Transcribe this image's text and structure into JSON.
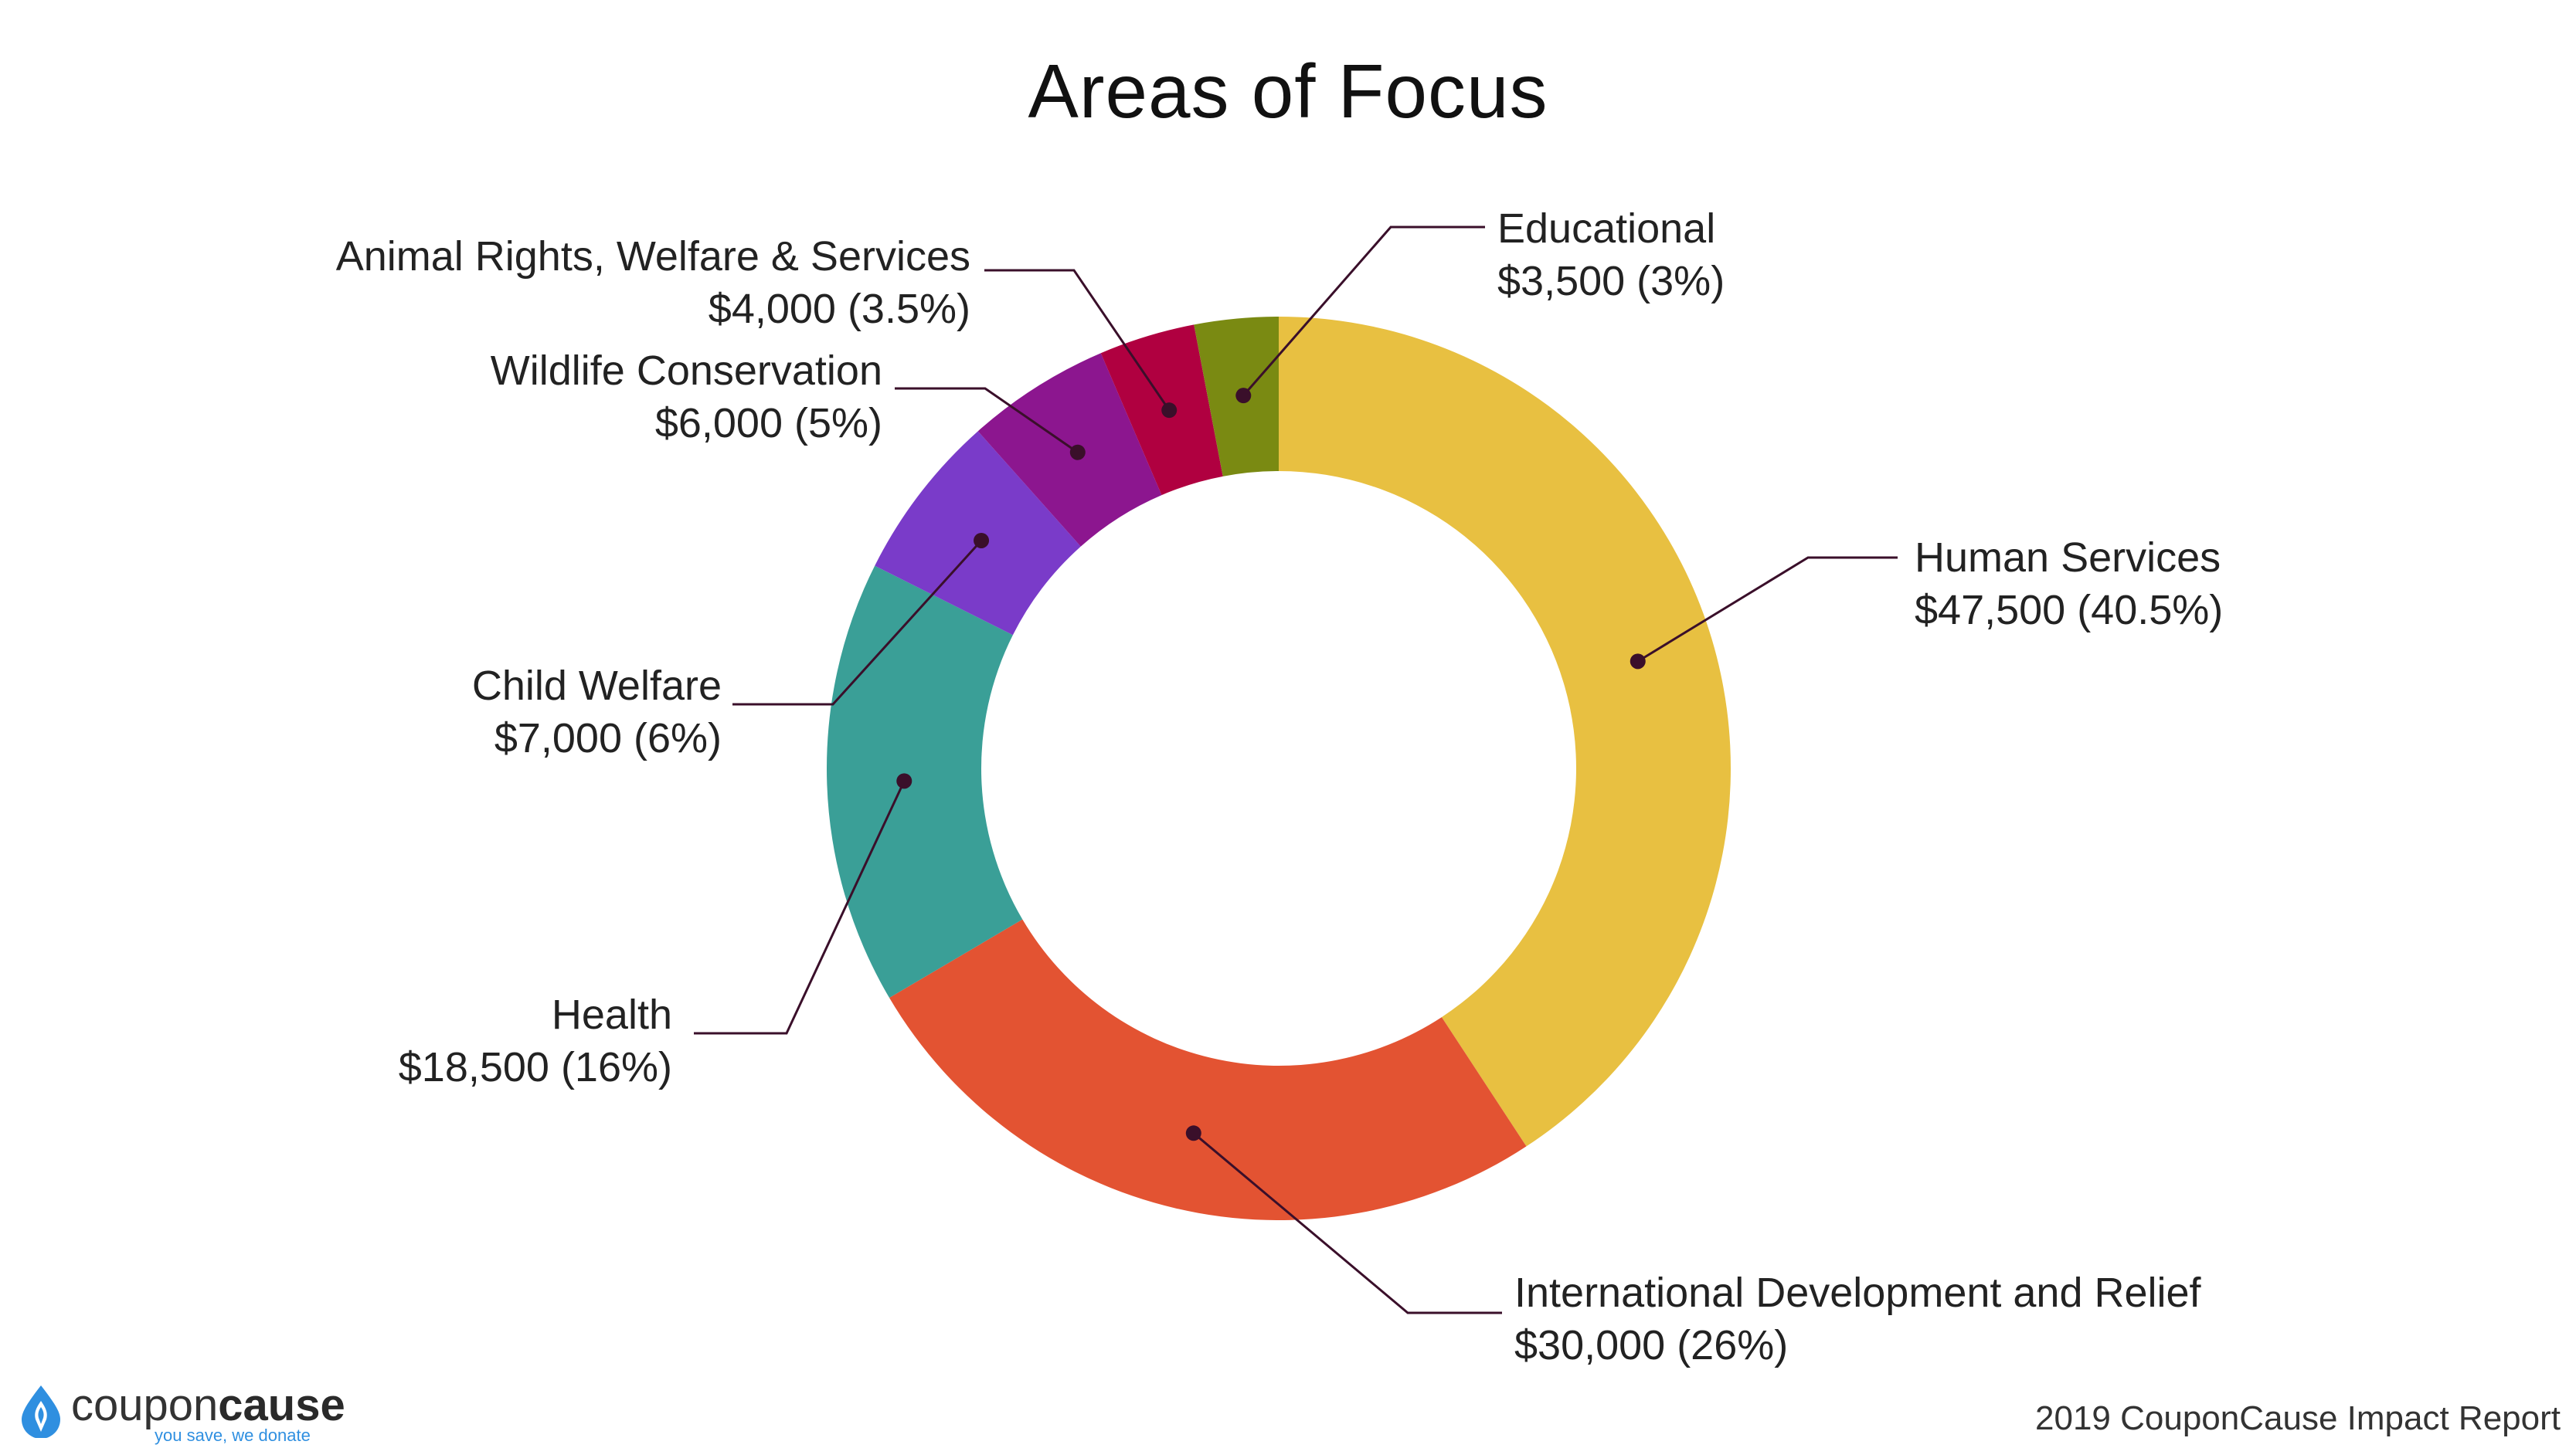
{
  "title": "Areas of Focus",
  "footer": "2019 CouponCause Impact Report",
  "brand": {
    "name_light": "coupon",
    "name_bold": "cause",
    "tagline": "you save, we donate",
    "color": "#2f8fe0"
  },
  "chart_data": {
    "type": "pie",
    "donut": true,
    "title": "Areas of Focus",
    "slices": [
      {
        "label": "Human Services",
        "value": 47500,
        "value_text": "$47,500 (40.5%)",
        "percent": 40.5,
        "color": "#e8c041"
      },
      {
        "label": "International Development and Relief",
        "value": 30000,
        "value_text": "$30,000 (26%)",
        "percent": 26,
        "color": "#e35332"
      },
      {
        "label": "Health",
        "value": 18500,
        "value_text": "$18,500 (16%)",
        "percent": 16,
        "color": "#3a9f97"
      },
      {
        "label": "Child Welfare",
        "value": 7000,
        "value_text": "$7,000 (6%)",
        "percent": 6,
        "color": "#7a3bc9"
      },
      {
        "label": "Wildlife Conservation",
        "value": 6000,
        "value_text": "$6,000 (5%)",
        "percent": 5,
        "color": "#8c168f"
      },
      {
        "label": "Animal Rights, Welfare & Services",
        "value": 4000,
        "value_text": "$4,000 (3.5%)",
        "percent": 3.5,
        "color": "#b00040"
      },
      {
        "label": "Educational",
        "value": 3500,
        "value_text": "$3,500 (3%)",
        "percent": 3,
        "color": "#7a8a12"
      }
    ]
  }
}
